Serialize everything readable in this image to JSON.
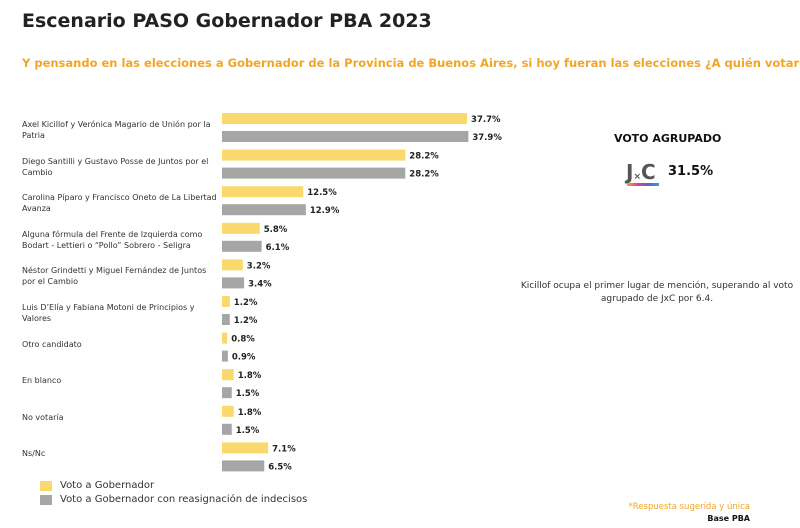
{
  "title": "Escenario PASO Gobernador PBA 2023",
  "subtitle": "Y pensando en las elecciones a Gobernador de la Provincia de Buenos Aires, si hoy fueran las elecciones ¿A quién votaría? *",
  "chart_data": {
    "type": "bar",
    "orientation": "horizontal",
    "categories": [
      "Axel Kicillof y Verónica Magario de Unión por la Patria",
      "Diego Santilli y Gustavo Posse de Juntos por el Cambio",
      "Carolina Píparo y Francisco Oneto de La Libertad Avanza",
      "Alguna fórmula del Frente de Izquierda como Bodart - Lettieri o “Pollo” Sobrero - Seligra",
      "Néstor Grindetti y Miguel Fernández de Juntos por el Cambio",
      "Luis D’Elía y Fabiana Motoni de Principios y Valores",
      "Otro candidato",
      "En blanco",
      "No votaría",
      "Ns/Nc"
    ],
    "series": [
      {
        "name": "Voto a Gobernador",
        "color": "#F9D96E",
        "values": [
          37.7,
          28.2,
          12.5,
          5.8,
          3.2,
          1.2,
          0.8,
          1.8,
          1.8,
          7.1
        ]
      },
      {
        "name": "Voto a Gobernador con reasignación de indecisos",
        "color": "#A6A6A6",
        "values": [
          37.9,
          28.2,
          12.9,
          6.1,
          3.4,
          1.2,
          0.9,
          1.5,
          1.5,
          6.5
        ]
      }
    ],
    "value_format": "%",
    "legend": "bottom-left",
    "grid": false
  },
  "side": {
    "title": "VOTO AGRUPADO",
    "logo_text": "J×C",
    "value": "31.5%",
    "note": "Kicillof ocupa el primer lugar de mención, superando al voto agrupado de JxC por 6.4."
  },
  "footer": {
    "note": "*Respuesta sugerida y única",
    "base": "Base PBA"
  }
}
